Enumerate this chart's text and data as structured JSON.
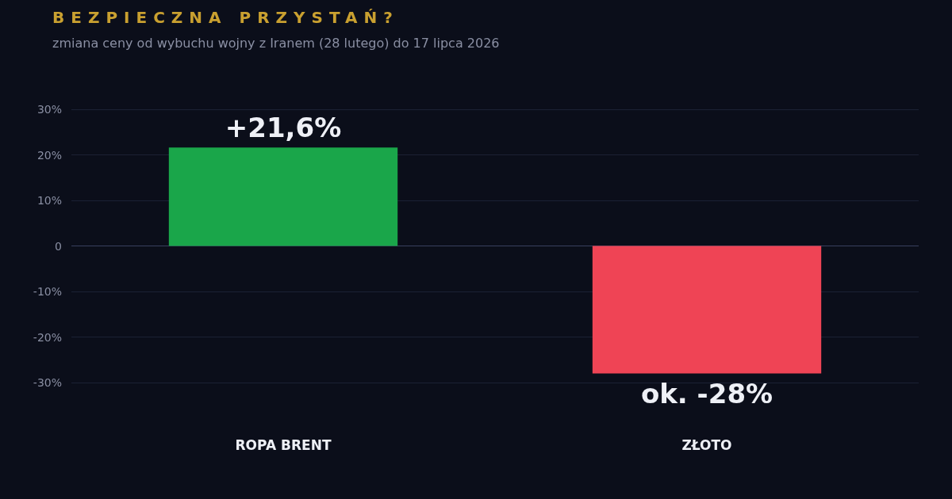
{
  "chart_data": {
    "type": "bar",
    "title": "BEZPIECZNA PRZYSTAŃ?",
    "subtitle": "zmiana ceny od wybuchu wojny z Iranem (28 lutego) do 17 lipca 2026",
    "categories": [
      "ROPA BRENT",
      "ZŁOTO"
    ],
    "values": [
      21.6,
      -28
    ],
    "colors": [
      "#1aa64a",
      "#ef4455"
    ],
    "value_labels": [
      "+21,6%",
      "ok. -28%"
    ],
    "ylim": [
      -30,
      30
    ],
    "yticks": [
      {
        "value": -30,
        "label": "-30%"
      },
      {
        "value": -20,
        "label": "-20%"
      },
      {
        "value": -10,
        "label": "-10%"
      },
      0,
      {
        "value": 10,
        "label": "10%"
      },
      {
        "value": 20,
        "label": "20%"
      },
      {
        "value": 30,
        "label": "30%"
      }
    ],
    "grid": "y"
  }
}
